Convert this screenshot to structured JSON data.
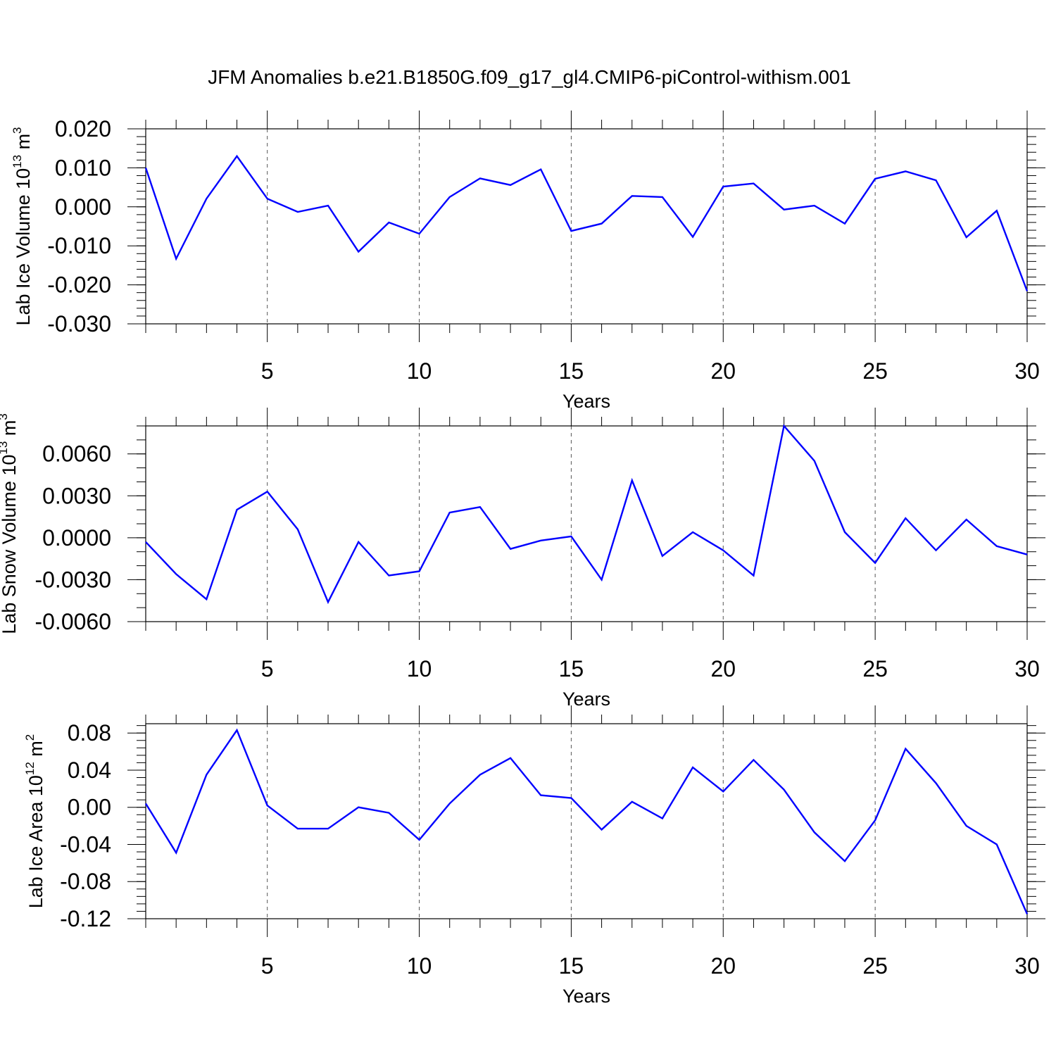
{
  "page": {
    "title": "JFM Anomalies b.e21.B1850G.f09_g17_gl4.CMIP6-piControl-withism.001"
  },
  "chart_data": [
    {
      "type": "line",
      "title": "JFM Anomalies b.e21.B1850G.f09_g17_gl4.CMIP6-piControl-withism.001",
      "xlabel": "Years",
      "ylabel": "Lab Ice Volume 10^13 m^3",
      "ylabel_base": "Lab Ice Volume 10",
      "ylabel_exp": "13",
      "ylabel_unit": " m",
      "ylabel_unit_exp": "3",
      "xlim": [
        1,
        30
      ],
      "ylim": [
        -0.03,
        0.02
      ],
      "x_ticks": [
        "5",
        "10",
        "15",
        "20",
        "25",
        "30"
      ],
      "x_tick_values": [
        5,
        10,
        15,
        20,
        25,
        30
      ],
      "y_ticks": [
        "0.020",
        "0.010",
        "0.000",
        "-0.010",
        "-0.020",
        "-0.030"
      ],
      "y_tick_values": [
        0.02,
        0.01,
        0.0,
        -0.01,
        -0.02,
        -0.03
      ],
      "y_minor_step": 0.002,
      "grid": "dashed vertical lines at major x ticks",
      "color": "#0000ff",
      "series": [
        {
          "x": [
            1,
            2,
            3,
            4,
            5,
            6,
            7,
            8,
            9,
            10,
            11,
            12,
            13,
            14,
            15,
            16,
            17,
            18,
            19,
            20,
            21,
            22,
            23,
            24,
            25,
            26,
            27,
            28,
            29,
            30
          ],
          "values": [
            0.01,
            -0.0133,
            0.0021,
            0.013,
            0.0021,
            -0.0013,
            0.0003,
            -0.0115,
            -0.004,
            -0.0069,
            0.0025,
            0.0073,
            0.0056,
            0.0096,
            -0.0062,
            -0.0043,
            0.0028,
            0.0025,
            -0.0077,
            0.0052,
            0.006,
            -0.0007,
            0.0003,
            -0.0043,
            0.0072,
            0.0091,
            0.0068,
            -0.0078,
            -0.001,
            -0.0216
          ]
        }
      ]
    },
    {
      "type": "line",
      "xlabel": "Years",
      "ylabel": "Lab Snow Volume 10^13 m^3",
      "ylabel_base": "Lab Snow Volume 10",
      "ylabel_exp": "13",
      "ylabel_unit": " m",
      "ylabel_unit_exp": "3",
      "xlim": [
        1,
        30
      ],
      "ylim": [
        -0.006,
        0.008
      ],
      "x_ticks": [
        "5",
        "10",
        "15",
        "20",
        "25",
        "30"
      ],
      "x_tick_values": [
        5,
        10,
        15,
        20,
        25,
        30
      ],
      "y_ticks": [
        "0.0060",
        "0.0030",
        "0.0000",
        "-0.0030",
        "-0.0060"
      ],
      "y_tick_values": [
        0.006,
        0.003,
        0.0,
        -0.003,
        -0.006
      ],
      "y_minor_step": 0.001,
      "grid": "dashed vertical lines at major x ticks",
      "color": "#0000ff",
      "series": [
        {
          "x": [
            1,
            2,
            3,
            4,
            5,
            6,
            7,
            8,
            9,
            10,
            11,
            12,
            13,
            14,
            15,
            16,
            17,
            18,
            19,
            20,
            21,
            22,
            23,
            24,
            25,
            26,
            27,
            28,
            29,
            30
          ],
          "values": [
            -0.0003,
            -0.0026,
            -0.0044,
            0.002,
            0.0033,
            0.0006,
            -0.0046,
            -0.0003,
            -0.0027,
            -0.0024,
            0.0018,
            0.0022,
            -0.0008,
            -0.0002,
            0.0001,
            -0.003,
            0.0041,
            -0.0013,
            0.0004,
            -0.0009,
            -0.0027,
            0.008,
            0.0055,
            0.0004,
            -0.0018,
            0.0014,
            -0.0009,
            0.0013,
            -0.0006,
            -0.0012
          ]
        }
      ]
    },
    {
      "type": "line",
      "xlabel": "Years",
      "ylabel": "Lab Ice Area 10^12 m^2",
      "ylabel_base": "Lab Ice Area 10",
      "ylabel_exp": "12",
      "ylabel_unit": " m",
      "ylabel_unit_exp": "2",
      "xlim": [
        1,
        30
      ],
      "ylim": [
        -0.12,
        0.09
      ],
      "x_ticks": [
        "5",
        "10",
        "15",
        "20",
        "25",
        "30"
      ],
      "x_tick_values": [
        5,
        10,
        15,
        20,
        25,
        30
      ],
      "y_ticks": [
        "0.08",
        "0.04",
        "0.00",
        "-0.04",
        "-0.08",
        "-0.12"
      ],
      "y_tick_values": [
        0.08,
        0.04,
        0.0,
        -0.04,
        -0.08,
        -0.12
      ],
      "y_minor_step": 0.008,
      "grid": "dashed vertical lines at major x ticks",
      "color": "#0000ff",
      "series": [
        {
          "x": [
            1,
            2,
            3,
            4,
            5,
            6,
            7,
            8,
            9,
            10,
            11,
            12,
            13,
            14,
            15,
            16,
            17,
            18,
            19,
            20,
            21,
            22,
            23,
            24,
            25,
            26,
            27,
            28,
            29,
            30
          ],
          "values": [
            0.004,
            -0.049,
            0.035,
            0.083,
            0.002,
            -0.023,
            -0.023,
            0.0,
            -0.006,
            -0.035,
            0.004,
            0.035,
            0.053,
            0.013,
            0.01,
            -0.024,
            0.006,
            -0.012,
            0.043,
            0.017,
            0.051,
            0.019,
            -0.027,
            -0.058,
            -0.014,
            0.063,
            0.026,
            -0.02,
            -0.04,
            -0.115
          ]
        }
      ]
    }
  ]
}
